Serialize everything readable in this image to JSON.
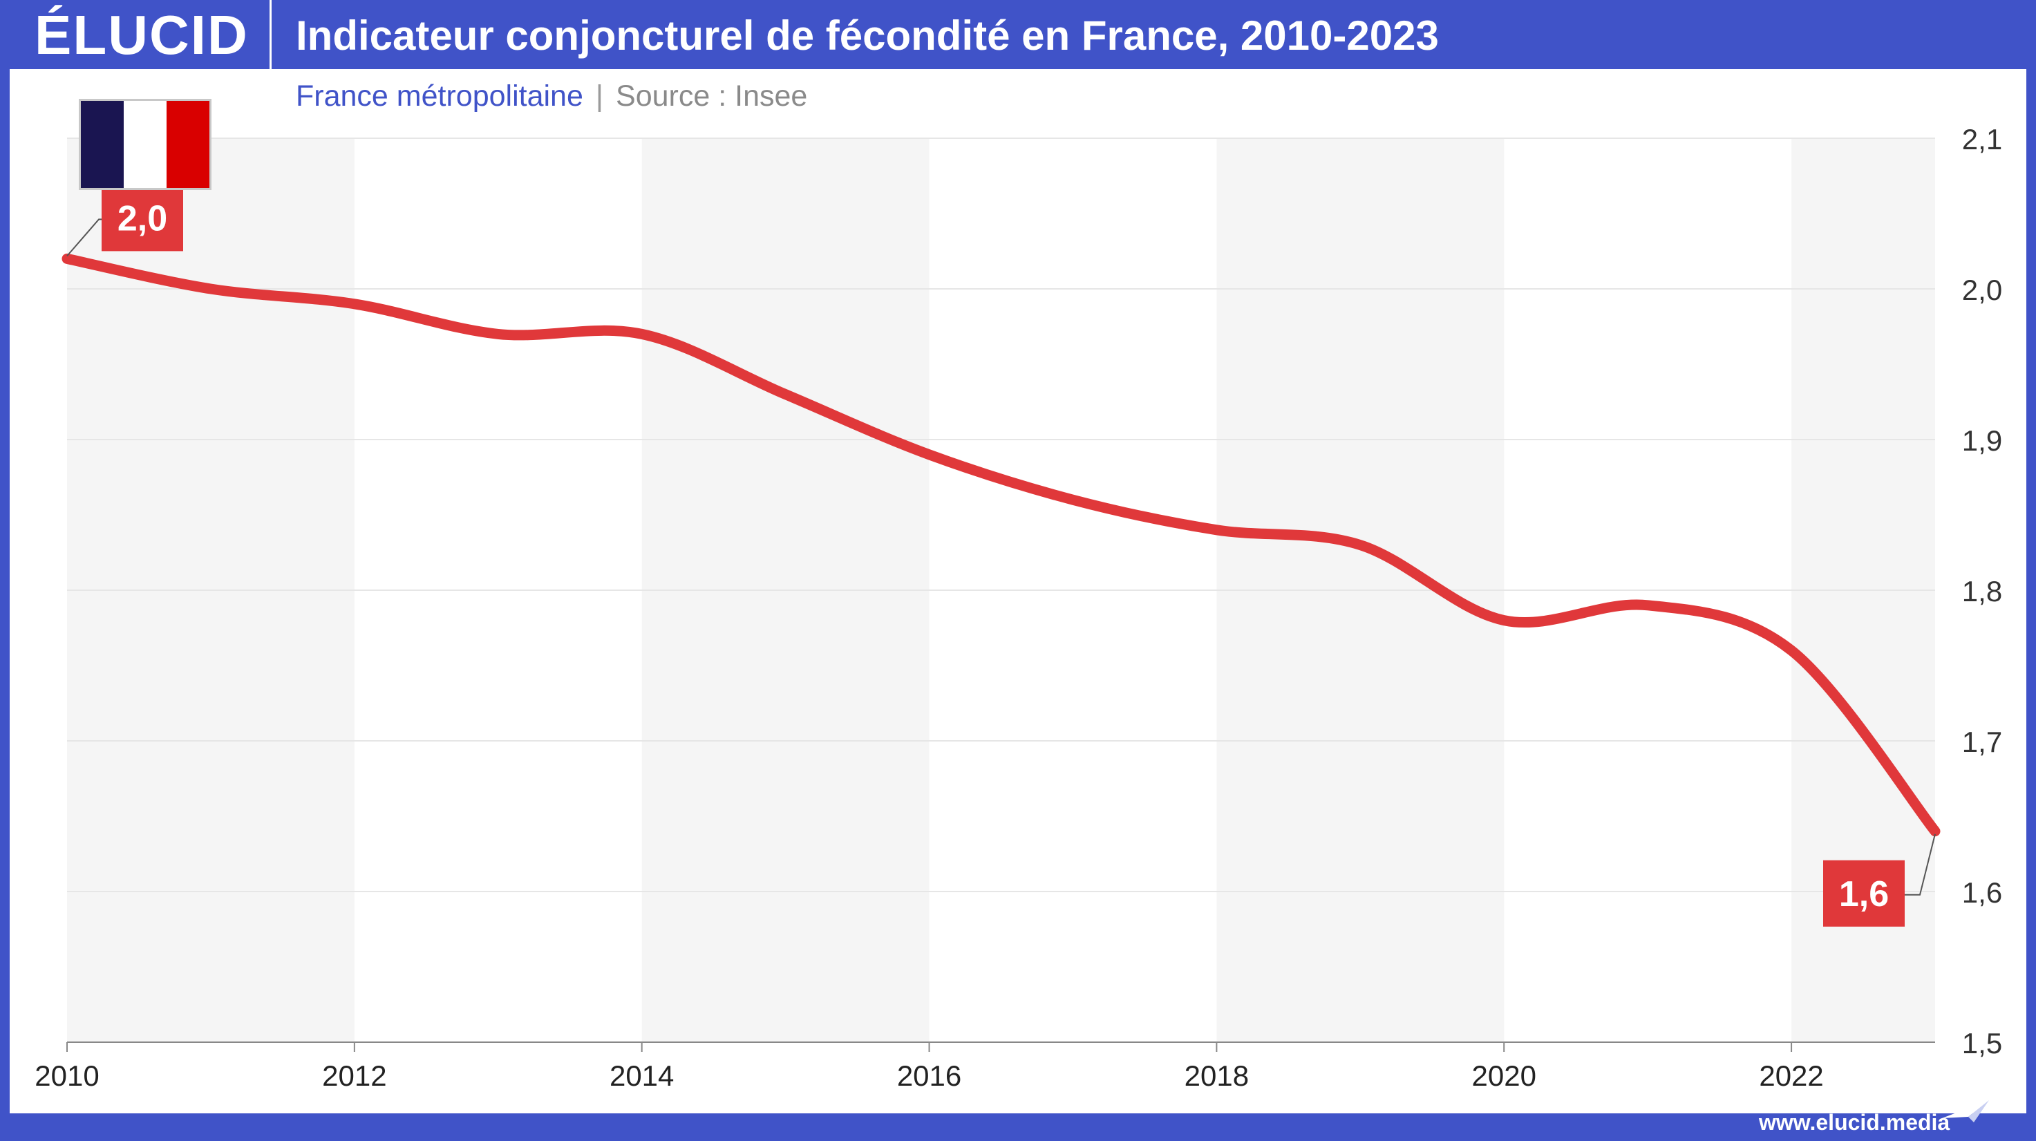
{
  "brand": {
    "logo": "ÉLUCID",
    "url": "www.elucid.media"
  },
  "colors": {
    "header": "#4053c8",
    "line": "#e0383a",
    "label_bg": "#e0383a",
    "band": "#f5f5f5",
    "grid": "#e6e6e6"
  },
  "icons": {
    "flag": "france-flag-icon",
    "footer": "paper-plane-icon"
  },
  "flag_colors": [
    "#1a1551",
    "#ffffff",
    "#d90000"
  ],
  "chart_data": {
    "type": "line",
    "title": "Indicateur conjoncturel de fécondité en France, 2010-2023",
    "subtitle": "France métropolitaine",
    "source": "Source : Insee",
    "xlabel": "",
    "ylabel": "",
    "x": [
      2010,
      2011,
      2012,
      2013,
      2014,
      2015,
      2016,
      2017,
      2018,
      2019,
      2020,
      2021,
      2022,
      2023
    ],
    "series": [
      {
        "values": [
          2.02,
          2.0,
          1.99,
          1.97,
          1.97,
          1.93,
          1.89,
          1.86,
          1.84,
          1.83,
          1.78,
          1.79,
          1.76,
          1.64
        ]
      }
    ],
    "xlim": [
      2010,
      2023
    ],
    "ylim": [
      1.5,
      2.1
    ],
    "xticks": [
      "2010",
      "2012",
      "2014",
      "2016",
      "2018",
      "2020",
      "2022"
    ],
    "yticks": [
      "1,5",
      "1,6",
      "1,7",
      "1,8",
      "1,9",
      "2,0",
      "2,1"
    ],
    "grid": true,
    "y_axis_position": "right",
    "annotations": [
      {
        "x": 2010,
        "label": "2,0",
        "placement": "above-right"
      },
      {
        "x": 2023,
        "label": "1,6",
        "placement": "below-left"
      }
    ]
  }
}
